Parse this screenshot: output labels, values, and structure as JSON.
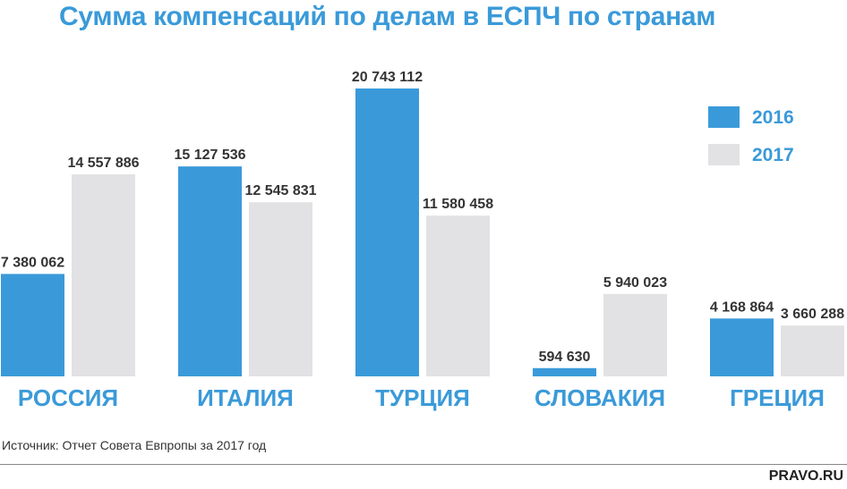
{
  "title": "Сумма компенсаций по делам в ЕСПЧ по странам",
  "source": "Источник: Отчет Совета Евпропы за 2017 год",
  "brand": "PRAVO.RU",
  "colors": {
    "series_2016": "#3a9ad9",
    "series_2017": "#e2e2e4",
    "accent": "#3a9ad9"
  },
  "chart_data": {
    "type": "bar",
    "title": "Сумма компенсаций по делам в ЕСПЧ по странам",
    "categories": [
      "РОССИЯ",
      "ИТАЛИЯ",
      "ТУРЦИЯ",
      "СЛОВАКИЯ",
      "ГРЕЦИЯ"
    ],
    "series": [
      {
        "name": "2016",
        "values": [
          7380062,
          15127536,
          20743112,
          594630,
          4168864
        ],
        "labels": [
          "7 380 062",
          "15 127 536",
          "20 743 112",
          "594 630",
          "4 168 864"
        ]
      },
      {
        "name": "2017",
        "values": [
          14557886,
          12545831,
          11580458,
          5940023,
          3660288
        ],
        "labels": [
          "14 557 886",
          "12 545 831",
          "11 580 458",
          "5 940 023",
          "3 660 288"
        ]
      }
    ],
    "ylim": [
      0,
      20743112
    ],
    "grid": false,
    "legend": "top-right",
    "xlabel": "",
    "ylabel": ""
  }
}
